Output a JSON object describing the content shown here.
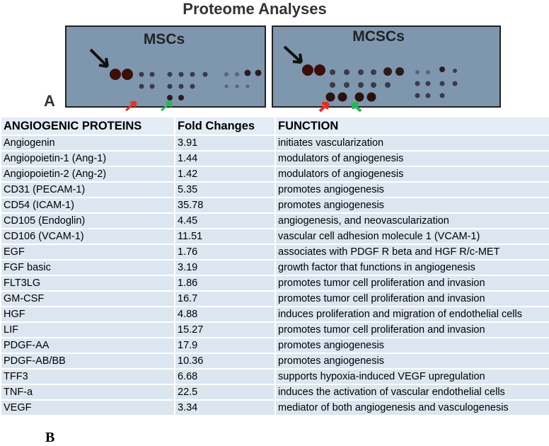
{
  "header": {
    "title": "Proteome Analyses"
  },
  "panel_a": {
    "label": "A",
    "blots": [
      "MSCs",
      "MCSCs"
    ]
  },
  "table": {
    "columns": [
      "ANGIOGENIC PROTEINS",
      "Fold Changes",
      "FUNCTION"
    ],
    "rows": [
      [
        "Angiogenin",
        3.91,
        "initiates vascularization"
      ],
      [
        "Angiopoietin-1 (Ang-1)",
        1.44,
        "modulators of angiogenesis"
      ],
      [
        "Angiopoietin-2 (Ang-2)",
        1.42,
        "modulators of angiogenesis"
      ],
      [
        "CD31 (PECAM-1)",
        5.35,
        "promotes angiogenesis"
      ],
      [
        "CD54 (ICAM-1)",
        35.78,
        "promotes angiogenesis"
      ],
      [
        "CD105 (Endoglin)",
        4.45,
        "angiogenesis, and neovascularization"
      ],
      [
        "CD106 (VCAM-1)",
        11.51,
        "vascular cell adhesion molecule 1 (VCAM-1)"
      ],
      [
        "EGF",
        1.76,
        "associates with PDGF R beta and HGF R/c-MET"
      ],
      [
        "FGF basic",
        3.19,
        "growth factor that functions in angiogenesis"
      ],
      [
        "FLT3LG",
        1.86,
        "promotes tumor cell proliferation and invasion"
      ],
      [
        "GM-CSF",
        16.7,
        "promotes tumor cell proliferation and invasion"
      ],
      [
        "HGF",
        4.88,
        "induces proliferation and migration of endothelial cells"
      ],
      [
        "LIF",
        15.27,
        "promotes tumor cell proliferation and invasion"
      ],
      [
        "PDGF-AA",
        17.9,
        "promotes angiogenesis"
      ],
      [
        "PDGF-AB/BB",
        10.36,
        "promotes angiogenesis"
      ],
      [
        "TFF3",
        6.68,
        "supports hypoxia-induced VEGF upregulation"
      ],
      [
        "TNF-a",
        22.5,
        "induces the activation of vascular endothelial cells"
      ],
      [
        "VEGF",
        3.34,
        "mediator of both angiogenesis and vasculogenesis"
      ]
    ]
  },
  "panel_b": {
    "label": "B"
  }
}
